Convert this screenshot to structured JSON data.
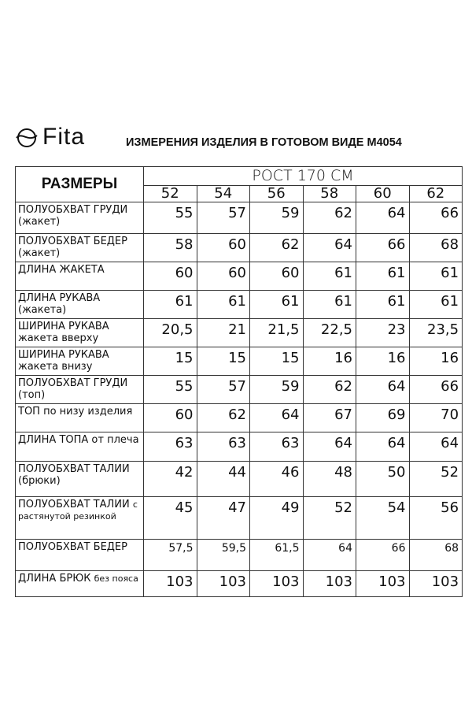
{
  "brand": "Fita",
  "title": "ИЗМЕРЕНИЯ ИЗДЕЛИЯ В ГОТОВОМ ВИДЕ М4054",
  "table": {
    "corner": "РАЗМЕРЫ",
    "group": "РОСТ 170 СМ",
    "sizes": [
      "52",
      "54",
      "56",
      "58",
      "60",
      "62"
    ],
    "rows": [
      {
        "main": "ПОЛУОБХВАТ ГРУДИ (жакет)",
        "small": "",
        "values": [
          "55",
          "57",
          "59",
          "62",
          "64",
          "66"
        ]
      },
      {
        "main": "ПОЛУОБХВАТ БЕДЕР (жакет)",
        "small": "",
        "values": [
          "58",
          "60",
          "62",
          "64",
          "66",
          "68"
        ]
      },
      {
        "main": "ДЛИНА ЖАКЕТА",
        "small": "",
        "values": [
          "60",
          "60",
          "60",
          "61",
          "61",
          "61"
        ]
      },
      {
        "main": "ДЛИНА РУКАВА (жакета)",
        "small": "",
        "values": [
          "61",
          "61",
          "61",
          "61",
          "61",
          "61"
        ]
      },
      {
        "main": "ШИРИНА РУКАВА жакета вверху",
        "small": "",
        "values": [
          "20,5",
          "21",
          "21,5",
          "22,5",
          "23",
          "23,5"
        ]
      },
      {
        "main": "ШИРИНА РУКАВА жакета внизу",
        "small": "",
        "values": [
          "15",
          "15",
          "15",
          "16",
          "16",
          "16"
        ]
      },
      {
        "main": "ПОЛУОБХВАТ ГРУДИ (топ)",
        "small": "",
        "values": [
          "55",
          "57",
          "59",
          "62",
          "64",
          "66"
        ]
      },
      {
        "main": "ТОП по низу изделия",
        "small": "",
        "values": [
          "60",
          "62",
          "64",
          "67",
          "69",
          "70"
        ]
      },
      {
        "main": "ДЛИНА ТОПА от плеча",
        "small": "",
        "values": [
          "63",
          "63",
          "63",
          "64",
          "64",
          "64"
        ]
      },
      {
        "main": "ПОЛУОБХВАТ ТАЛИИ (брюки)",
        "small": "",
        "values": [
          "42",
          "44",
          "46",
          "48",
          "50",
          "52"
        ]
      },
      {
        "main": "ПОЛУОБХВАТ ТАЛИИ",
        "small": "с растянутой резинкой",
        "values": [
          "45",
          "47",
          "49",
          "52",
          "54",
          "56"
        ]
      },
      {
        "main": "ПОЛУОБХВАТ БЕДЕР",
        "small": "",
        "values": [
          "57,5",
          "59,5",
          "61,5",
          "64",
          "66",
          "68"
        ],
        "small_values": true
      },
      {
        "main": "ДЛИНА БРЮК",
        "small": "без пояса",
        "values": [
          "103",
          "103",
          "103",
          "103",
          "103",
          "103"
        ]
      }
    ]
  }
}
